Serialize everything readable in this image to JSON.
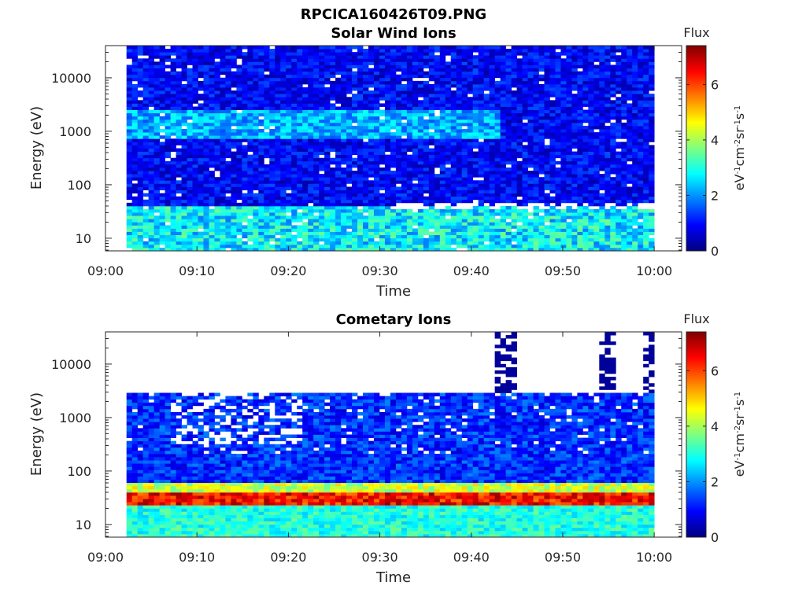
{
  "figure": {
    "suptitle": "RPCICA160426T09.PNG"
  },
  "colorscale": {
    "stops": [
      "#00007f",
      "#0000ff",
      "#007fff",
      "#00ffff",
      "#7fff7f",
      "#ffff00",
      "#ff7f00",
      "#ff0000",
      "#7f0000"
    ],
    "vmin": 0,
    "vmax": 7.4
  },
  "chart_data": [
    {
      "type": "heatmap",
      "title": "Solar Wind Ions",
      "xlabel": "Time",
      "ylabel": "Energy (eV)",
      "x_ticks": [
        "09:00",
        "09:10",
        "09:20",
        "09:30",
        "09:40",
        "09:50",
        "10:00"
      ],
      "x_range_min": [
        0,
        63
      ],
      "data_x_range_min": [
        2.3,
        60
      ],
      "y_scale": "log",
      "y_ticks": [
        10,
        100,
        1000,
        10000
      ],
      "y_tick_labels": [
        "10",
        "100",
        "1000",
        "10000"
      ],
      "y_range_eV": [
        5.8,
        40000
      ],
      "colorbar": {
        "label": "Flux",
        "units": {
          "base": "eV",
          "p1": "-1",
          "m1": "cm",
          "p2": "-2",
          "m2": "sr",
          "p3": "-1",
          "m3": "s",
          "p4": "-1"
        },
        "ticks": [
          "0",
          "2",
          "4",
          "6"
        ],
        "range": [
          0,
          7.4
        ]
      },
      "features": [
        {
          "description": "low-energy band",
          "energy_eV": [
            6,
            40
          ],
          "flux": 2.0
        },
        {
          "description": "solar wind proton peak near 1 keV",
          "energy_eV": [
            700,
            2500
          ],
          "flux": 2.5,
          "time_min": [
            3,
            43
          ]
        },
        {
          "description": "background",
          "flux": 0.8
        }
      ]
    },
    {
      "type": "heatmap",
      "title": "Cometary Ions",
      "xlabel": "Time",
      "ylabel": "Energy (eV)",
      "x_ticks": [
        "09:00",
        "09:10",
        "09:20",
        "09:30",
        "09:40",
        "09:50",
        "10:00"
      ],
      "x_range_min": [
        0,
        63
      ],
      "data_x_range_min": [
        2.3,
        60
      ],
      "y_scale": "log",
      "y_ticks": [
        10,
        100,
        1000,
        10000
      ],
      "y_tick_labels": [
        "10",
        "100",
        "1000",
        "10000"
      ],
      "y_range_eV": [
        5.8,
        40000
      ],
      "colorbar": {
        "label": "Flux",
        "units": {
          "base": "eV",
          "p1": "-1",
          "m1": "cm",
          "p2": "-2",
          "m2": "sr",
          "p3": "-1",
          "m3": "s",
          "p4": "-1"
        },
        "ticks": [
          "0",
          "2",
          "4",
          "6"
        ],
        "range": [
          0,
          7.4
        ]
      },
      "features": [
        {
          "description": "cometary ion peak",
          "energy_eV": [
            22,
            40
          ],
          "flux": 6.5
        },
        {
          "description": "low-energy band",
          "energy_eV": [
            6,
            22
          ],
          "flux": 3.0
        },
        {
          "description": "upper cutoff of data",
          "energy_eV": 3000
        },
        {
          "description": "high-energy spikes",
          "time_min": [
            43,
            44,
            54,
            55,
            59,
            60
          ],
          "energy_eV": [
            3000,
            30000
          ],
          "flux": 0.3
        }
      ]
    }
  ]
}
